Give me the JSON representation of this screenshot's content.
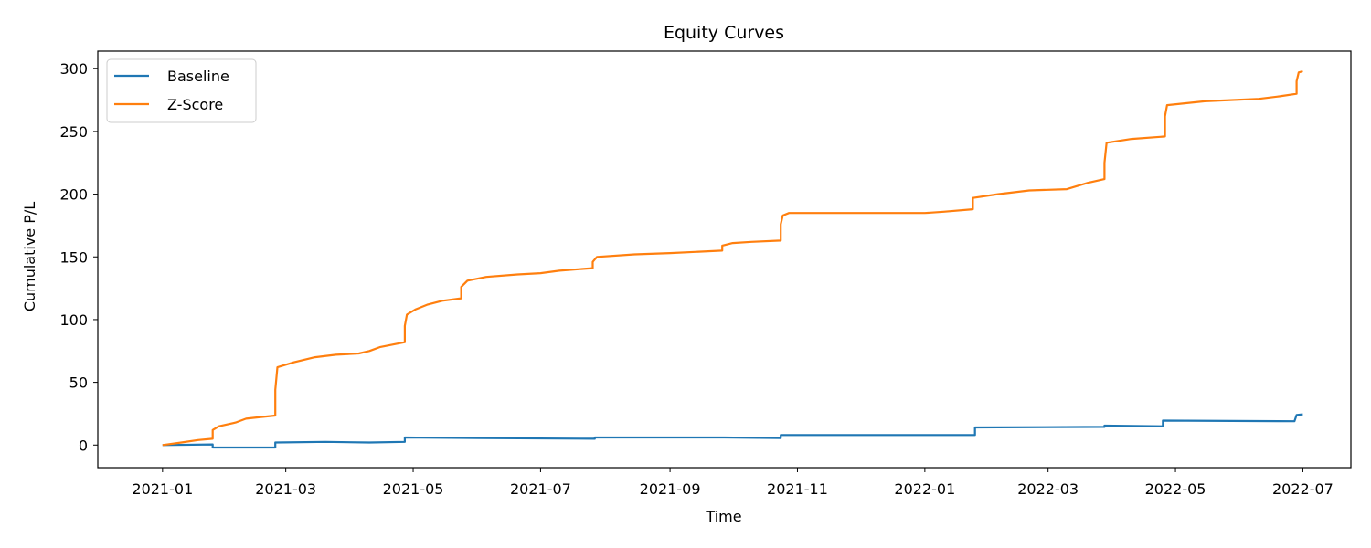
{
  "chart_data": {
    "type": "line",
    "title": "Equity Curves",
    "xlabel": "Time",
    "ylabel": "Cumulative P/L",
    "xlim": [
      "2020-12-01",
      "2022-07-24"
    ],
    "ylim": [
      -18,
      314
    ],
    "x_ticks": [
      "2021-01",
      "2021-03",
      "2021-05",
      "2021-07",
      "2021-09",
      "2021-11",
      "2022-01",
      "2022-03",
      "2022-05",
      "2022-07"
    ],
    "y_ticks": [
      0,
      50,
      100,
      150,
      200,
      250,
      300
    ],
    "grid": false,
    "legend_position": "upper-left",
    "series": [
      {
        "name": "Baseline",
        "color": "#1f77b4",
        "points": [
          [
            "2021-01-01",
            0
          ],
          [
            "2021-01-25",
            0.5
          ],
          [
            "2021-01-25",
            -2
          ],
          [
            "2021-02-10",
            -2
          ],
          [
            "2021-02-24",
            -2
          ],
          [
            "2021-02-24",
            2
          ],
          [
            "2021-03-20",
            2.5
          ],
          [
            "2021-04-10",
            2
          ],
          [
            "2021-04-27",
            2.5
          ],
          [
            "2021-04-27",
            6
          ],
          [
            "2021-06-01",
            5.5
          ],
          [
            "2021-07-27",
            5
          ],
          [
            "2021-07-27",
            6
          ],
          [
            "2021-09-27",
            6
          ],
          [
            "2021-10-24",
            5.5
          ],
          [
            "2021-10-24",
            8
          ],
          [
            "2022-01-25",
            8
          ],
          [
            "2022-01-25",
            14
          ],
          [
            "2022-03-28",
            14.5
          ],
          [
            "2022-03-28",
            15.5
          ],
          [
            "2022-04-25",
            15
          ],
          [
            "2022-04-25",
            19.5
          ],
          [
            "2022-06-27",
            19
          ],
          [
            "2022-06-28",
            24
          ],
          [
            "2022-07-01",
            24.5
          ]
        ]
      },
      {
        "name": "Z-Score",
        "color": "#ff7f0e",
        "points": [
          [
            "2021-01-01",
            0
          ],
          [
            "2021-01-10",
            2
          ],
          [
            "2021-01-18",
            4
          ],
          [
            "2021-01-25",
            5
          ],
          [
            "2021-01-25",
            12
          ],
          [
            "2021-01-28",
            15
          ],
          [
            "2021-02-05",
            18
          ],
          [
            "2021-02-10",
            21
          ],
          [
            "2021-02-15",
            22
          ],
          [
            "2021-02-24",
            23.5
          ],
          [
            "2021-02-24",
            44
          ],
          [
            "2021-02-25",
            62
          ],
          [
            "2021-03-05",
            66
          ],
          [
            "2021-03-15",
            70
          ],
          [
            "2021-03-25",
            72
          ],
          [
            "2021-04-05",
            73
          ],
          [
            "2021-04-10",
            75
          ],
          [
            "2021-04-15",
            78
          ],
          [
            "2021-04-27",
            82
          ],
          [
            "2021-04-27",
            95
          ],
          [
            "2021-04-28",
            104
          ],
          [
            "2021-05-02",
            108
          ],
          [
            "2021-05-08",
            112
          ],
          [
            "2021-05-15",
            115
          ],
          [
            "2021-05-24",
            117
          ],
          [
            "2021-05-24",
            126
          ],
          [
            "2021-05-27",
            131
          ],
          [
            "2021-06-05",
            134
          ],
          [
            "2021-06-20",
            136
          ],
          [
            "2021-07-01",
            137
          ],
          [
            "2021-07-10",
            139
          ],
          [
            "2021-07-26",
            141
          ],
          [
            "2021-07-26",
            146
          ],
          [
            "2021-07-28",
            150
          ],
          [
            "2021-08-15",
            152
          ],
          [
            "2021-09-01",
            153
          ],
          [
            "2021-09-26",
            155
          ],
          [
            "2021-09-26",
            159
          ],
          [
            "2021-10-01",
            161
          ],
          [
            "2021-10-10",
            162
          ],
          [
            "2021-10-24",
            163
          ],
          [
            "2021-10-24",
            176
          ],
          [
            "2021-10-25",
            183
          ],
          [
            "2021-10-28",
            185
          ],
          [
            "2022-01-01",
            185
          ],
          [
            "2022-01-10",
            186
          ],
          [
            "2022-01-24",
            188
          ],
          [
            "2022-01-24",
            197
          ],
          [
            "2022-02-05",
            200
          ],
          [
            "2022-02-20",
            203
          ],
          [
            "2022-03-10",
            204
          ],
          [
            "2022-03-20",
            209
          ],
          [
            "2022-03-28",
            212
          ],
          [
            "2022-03-28",
            225
          ],
          [
            "2022-03-29",
            241
          ],
          [
            "2022-04-10",
            244
          ],
          [
            "2022-04-26",
            246
          ],
          [
            "2022-04-26",
            262
          ],
          [
            "2022-04-27",
            271
          ],
          [
            "2022-05-15",
            274
          ],
          [
            "2022-06-10",
            276
          ],
          [
            "2022-06-20",
            278
          ],
          [
            "2022-06-28",
            280
          ],
          [
            "2022-06-28",
            290
          ],
          [
            "2022-06-29",
            297
          ],
          [
            "2022-07-01",
            298
          ]
        ]
      }
    ]
  }
}
